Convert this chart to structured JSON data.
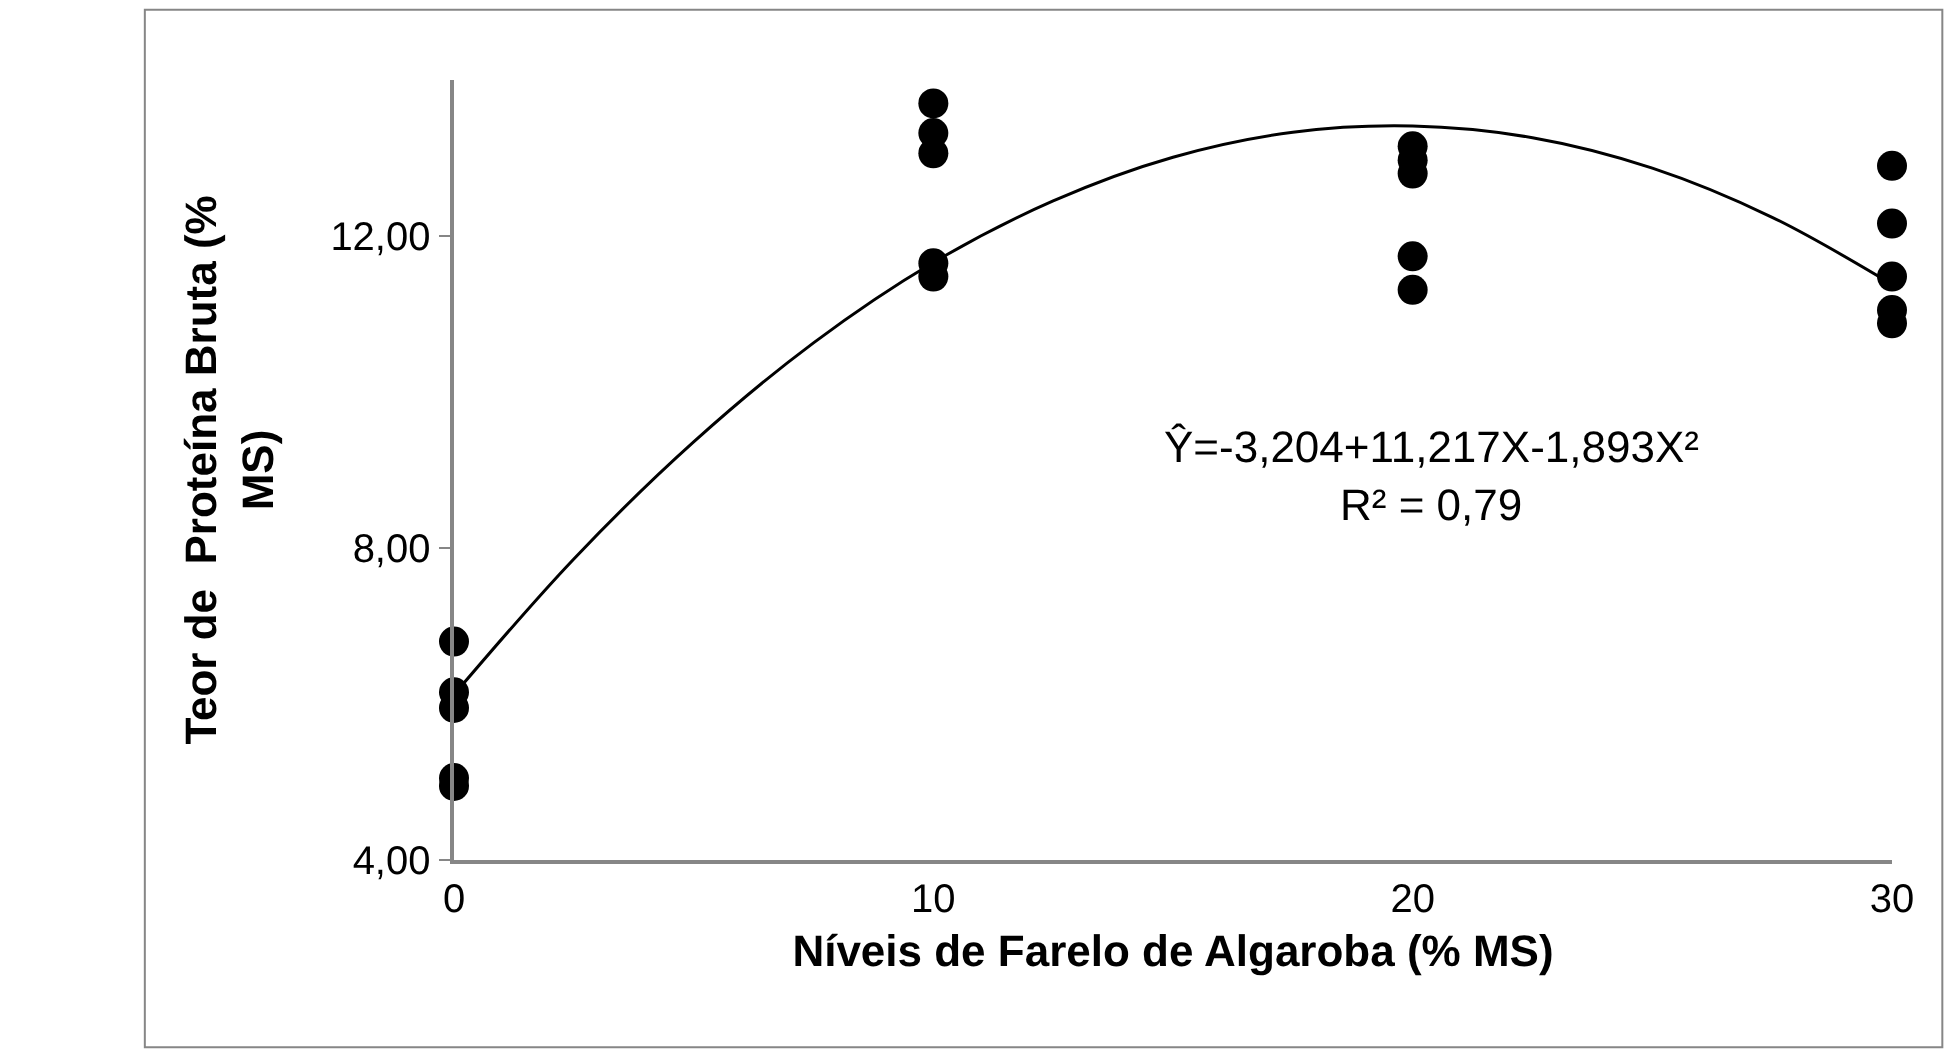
{
  "chart_data": {
    "type": "scatter",
    "xlabel": "Níveis de Farelo de Algaroba (% MS)",
    "ylabel": "Teor de  Proteína Bruta (% MS)",
    "xlim": [
      0,
      30
    ],
    "xticks": [
      0,
      10,
      20,
      30
    ],
    "ylim": [
      4,
      14
    ],
    "yticks": [
      {
        "value": 4,
        "label": "4,00"
      },
      {
        "value": 8,
        "label": "8,00"
      },
      {
        "value": 12,
        "label": "12,00"
      }
    ],
    "grid": false,
    "legend": false,
    "marker": "circle",
    "series": [
      {
        "color": "#000000",
        "x": [
          0,
          0,
          0,
          0,
          0,
          10,
          10,
          10,
          10,
          10,
          20,
          20,
          20,
          20,
          20,
          30,
          30,
          30,
          30,
          30
        ],
        "values": [
          6.8,
          6.15,
          5.95,
          5.05,
          4.95,
          13.7,
          13.32,
          13.06,
          11.65,
          11.48,
          13.15,
          12.97,
          12.8,
          11.74,
          11.31,
          12.9,
          12.16,
          11.48,
          11.05,
          10.88
        ]
      },
      {
        "type": "line",
        "color": "#000000",
        "marker": "none",
        "x": [
          0,
          2.5,
          5,
          7.5,
          10,
          12.5,
          15,
          17.5,
          20,
          22.5,
          25,
          27.5,
          30
        ],
        "values": [
          6.12,
          7.86,
          9.36,
          10.63,
          11.66,
          12.45,
          13.01,
          13.33,
          13.41,
          13.26,
          12.87,
          12.24,
          11.38
        ]
      }
    ],
    "annotations": [
      "Ŷ=-3,204+11,217X-1,893X²",
      "R² = 0,79"
    ]
  }
}
